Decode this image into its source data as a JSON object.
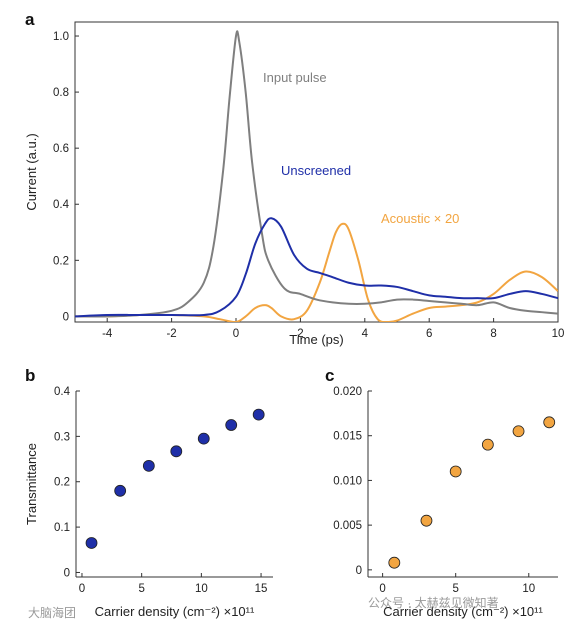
{
  "watermarks": {
    "left": "大脑海团",
    "right": "公众号 · 太赫兹见微知著"
  },
  "chart_data": [
    {
      "panel": "a",
      "type": "line",
      "xlabel": "Time (ps)",
      "ylabel": "Current (a.u.)",
      "xlim": [
        -5,
        10
      ],
      "ylim": [
        -0.02,
        1.05
      ],
      "xticks": [
        -4,
        -2,
        0,
        2,
        4,
        6,
        8,
        10
      ],
      "yticks": [
        0,
        0.2,
        0.4,
        0.6,
        0.8,
        1.0
      ],
      "ytick_labels": [
        "0",
        "0.2",
        "0.4",
        "0.6",
        "0.8",
        "1.0"
      ],
      "series": [
        {
          "name": "Input pulse",
          "color": "#7f7f7f",
          "x": [
            -5,
            -4,
            -3,
            -2,
            -1.5,
            -1,
            -0.7,
            -0.4,
            -0.2,
            0,
            0.1,
            0.3,
            0.5,
            0.8,
            1.0,
            1.5,
            2,
            2.5,
            3,
            3.5,
            4,
            4.5,
            5,
            5.5,
            6,
            6.5,
            7,
            7.5,
            8,
            8.5,
            9,
            9.5,
            10
          ],
          "y": [
            0.0,
            0.0,
            0.005,
            0.02,
            0.05,
            0.12,
            0.25,
            0.52,
            0.78,
            1.0,
            0.98,
            0.8,
            0.55,
            0.3,
            0.2,
            0.1,
            0.08,
            0.06,
            0.05,
            0.045,
            0.045,
            0.05,
            0.06,
            0.06,
            0.055,
            0.05,
            0.045,
            0.04,
            0.05,
            0.03,
            0.02,
            0.015,
            0.01
          ]
        },
        {
          "name": "Unscreened",
          "color": "#1f2fa8",
          "x": [
            -5,
            -4,
            -3,
            -2,
            -1,
            -0.5,
            0,
            0.3,
            0.6,
            0.9,
            1.1,
            1.4,
            1.8,
            2.2,
            2.6,
            3,
            3.5,
            4,
            4.5,
            5,
            5.5,
            6,
            6.5,
            7,
            7.5,
            8,
            8.5,
            9,
            9.5,
            10
          ],
          "y": [
            0.0,
            0.005,
            0.005,
            0.005,
            0.005,
            0.02,
            0.07,
            0.15,
            0.26,
            0.33,
            0.35,
            0.32,
            0.22,
            0.17,
            0.155,
            0.14,
            0.12,
            0.11,
            0.11,
            0.105,
            0.09,
            0.075,
            0.07,
            0.065,
            0.065,
            0.065,
            0.08,
            0.09,
            0.08,
            0.065
          ]
        },
        {
          "name": "Acoustic × 20",
          "color": "#f2a541",
          "x": [
            -5,
            -4,
            -3,
            -2,
            -1,
            -0.5,
            0,
            0.3,
            0.6,
            0.9,
            1.1,
            1.4,
            1.8,
            2.2,
            2.6,
            2.9,
            3.1,
            3.3,
            3.5,
            3.8,
            4.1,
            4.4,
            4.7,
            5,
            5.5,
            6,
            6.5,
            7,
            7.5,
            8,
            8.5,
            9,
            9.5,
            10
          ],
          "y": [
            0.0,
            0.0,
            0.005,
            0.005,
            0.0,
            -0.01,
            -0.02,
            0.0,
            0.03,
            0.04,
            0.03,
            0.0,
            -0.01,
            0.02,
            0.12,
            0.23,
            0.3,
            0.33,
            0.31,
            0.2,
            0.06,
            -0.01,
            -0.02,
            -0.015,
            0.01,
            0.03,
            0.035,
            0.04,
            0.05,
            0.08,
            0.13,
            0.16,
            0.14,
            0.09
          ]
        }
      ],
      "annotations": [
        "Input pulse",
        "Unscreened",
        "Acoustic × 20"
      ]
    },
    {
      "panel": "b",
      "type": "scatter",
      "xlabel": "Carrier density (cm⁻²) ×10¹¹",
      "ylabel": "Transmittance",
      "xlim": [
        -0.5,
        16
      ],
      "ylim": [
        -0.01,
        0.4
      ],
      "xticks": [
        0,
        5,
        10,
        15
      ],
      "yticks": [
        0,
        0.1,
        0.2,
        0.3,
        0.4
      ],
      "ytick_labels": [
        "0",
        "0.1",
        "0.2",
        "0.3",
        "0.4"
      ],
      "color": "#1f2fa8",
      "x": [
        0.8,
        3.2,
        5.6,
        7.9,
        10.2,
        12.5,
        14.8
      ],
      "y": [
        0.065,
        0.18,
        0.235,
        0.267,
        0.295,
        0.325,
        0.348
      ]
    },
    {
      "panel": "c",
      "type": "scatter",
      "xlabel": "Carrier density (cm⁻²) ×10¹¹",
      "ylabel": "",
      "xlim": [
        -1,
        12
      ],
      "ylim": [
        -0.0008,
        0.02
      ],
      "xticks": [
        0,
        5,
        10
      ],
      "yticks": [
        0,
        0.005,
        0.01,
        0.015,
        0.02
      ],
      "ytick_labels": [
        "0",
        "0.005",
        "0.010",
        "0.015",
        "0.020"
      ],
      "color": "#f2a541",
      "x": [
        0.8,
        3.0,
        5.0,
        7.2,
        9.3,
        11.4
      ],
      "y": [
        0.0008,
        0.0055,
        0.011,
        0.014,
        0.0155,
        0.0165
      ]
    }
  ]
}
